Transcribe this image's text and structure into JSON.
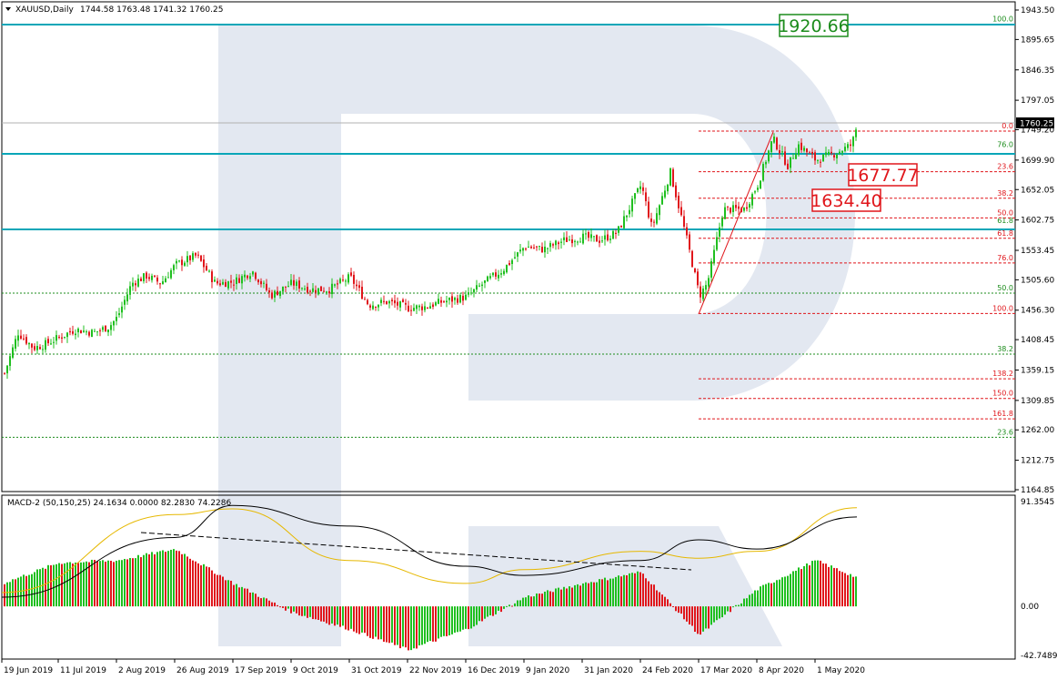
{
  "header": {
    "symbol": "XAUUSD,Daily",
    "ohlc": "1744.58 1763.48 1741.32 1760.25"
  },
  "macd_header": "MACD-2 (50,150,25) 24.1634 0.0000 82.2830 74.2286",
  "price_axis": {
    "labels": [
      "1943.50",
      "1895.65",
      "1846.35",
      "1797.05",
      "1749.20",
      "1699.90",
      "1652.05",
      "1602.75",
      "1553.45",
      "1505.60",
      "1456.30",
      "1408.45",
      "1359.15",
      "1309.85",
      "1262.00",
      "1212.75",
      "1164.85"
    ],
    "current_price": "1760.25"
  },
  "macd_axis": {
    "top": "91.3545",
    "zero": "0.00",
    "bottom": "-42.7489"
  },
  "date_axis": [
    "19 Jun 2019",
    "11 Jul 2019",
    "2 Aug 2019",
    "26 Aug 2019",
    "17 Sep 2019",
    "9 Oct 2019",
    "31 Oct 2019",
    "22 Nov 2019",
    "16 Dec 2019",
    "9 Jan 2020",
    "31 Jan 2020",
    "24 Feb 2020",
    "17 Mar 2020",
    "8 Apr 2020",
    "1 May 2020"
  ],
  "annotations": {
    "target_high": "1920.66",
    "support_1": "1677.77",
    "support_2": "1634.40"
  },
  "fib_long": [
    {
      "label": "100.0",
      "price": 1920.66
    },
    {
      "label": "76.0",
      "price": 1717
    },
    {
      "label": "61.8",
      "price": 1593
    },
    {
      "label": "50.0",
      "price": 1484
    },
    {
      "label": "38.2",
      "price": 1385
    },
    {
      "label": "23.6",
      "price": 1250
    }
  ],
  "fib_short": [
    {
      "label": "0.0",
      "price": 1747
    },
    {
      "label": "23.6",
      "price": 1681
    },
    {
      "label": "38.2",
      "price": 1638
    },
    {
      "label": "50.0",
      "price": 1606
    },
    {
      "label": "61.8",
      "price": 1573
    },
    {
      "label": "76.0",
      "price": 1533
    },
    {
      "label": "100.0",
      "price": 1451
    }
  ],
  "fib_ext": [
    {
      "label": "138.2",
      "price": 1345
    },
    {
      "label": "150.0",
      "price": 1313
    },
    {
      "label": "161.8",
      "price": 1280
    }
  ],
  "colors": {
    "bull": "#1fbf1f",
    "bear": "#e0161b",
    "fib_long": "#1c8c1c",
    "fib_short": "#e0161b",
    "level_line": "#0aa6b8",
    "signal": "#e6b800",
    "watermark": "#e3e8f1"
  },
  "chart_data": {
    "type": "candlestick",
    "title": "XAUUSD,Daily",
    "ylim": [
      1164.85,
      1943.5
    ],
    "close_path": [
      [
        "19 Jun 2019",
        1345
      ],
      [
        "25 Jun 2019",
        1420
      ],
      [
        "1 Jul 2019",
        1395
      ],
      [
        "5 Jul 2019",
        1400
      ],
      [
        "11 Jul 2019",
        1412
      ],
      [
        "17 Jul 2019",
        1425
      ],
      [
        "24 Jul 2019",
        1420
      ],
      [
        "30 Jul 2019",
        1430
      ],
      [
        "2 Aug 2019",
        1445
      ],
      [
        "8 Aug 2019",
        1500
      ],
      [
        "14 Aug 2019",
        1512
      ],
      [
        "20 Aug 2019",
        1500
      ],
      [
        "26 Aug 2019",
        1530
      ],
      [
        "3 Sep 2019",
        1545
      ],
      [
        "10 Sep 2019",
        1500
      ],
      [
        "17 Sep 2019",
        1502
      ],
      [
        "24 Sep 2019",
        1520
      ],
      [
        "1 Oct 2019",
        1480
      ],
      [
        "9 Oct 2019",
        1500
      ],
      [
        "16 Oct 2019",
        1490
      ],
      [
        "23 Oct 2019",
        1490
      ],
      [
        "31 Oct 2019",
        1510
      ],
      [
        "7 Nov 2019",
        1465
      ],
      [
        "14 Nov 2019",
        1470
      ],
      [
        "22 Nov 2019",
        1460
      ],
      [
        "29 Nov 2019",
        1462
      ],
      [
        "6 Dec 2019",
        1470
      ],
      [
        "16 Dec 2019",
        1478
      ],
      [
        "23 Dec 2019",
        1500
      ],
      [
        "31 Dec 2019",
        1522
      ],
      [
        "9 Jan 2020",
        1560
      ],
      [
        "16 Jan 2020",
        1555
      ],
      [
        "24 Jan 2020",
        1570
      ],
      [
        "31 Jan 2020",
        1575
      ],
      [
        "7 Feb 2020",
        1570
      ],
      [
        "14 Feb 2020",
        1582
      ],
      [
        "24 Feb 2020",
        1660
      ],
      [
        "28 Feb 2020",
        1590
      ],
      [
        "6 Mar 2020",
        1680
      ],
      [
        "12 Mar 2020",
        1575
      ],
      [
        "17 Mar 2020",
        1480
      ],
      [
        "20 Mar 2020",
        1500
      ],
      [
        "26 Mar 2020",
        1620
      ],
      [
        "3 Apr 2020",
        1620
      ],
      [
        "8 Apr 2020",
        1660
      ],
      [
        "14 Apr 2020",
        1735
      ],
      [
        "20 Apr 2020",
        1690
      ],
      [
        "24 Apr 2020",
        1725
      ],
      [
        "1 May 2020",
        1700
      ],
      [
        "7 May 2020",
        1710
      ],
      [
        "13 May 2020",
        1725
      ],
      [
        "15 May 2020",
        1760.25
      ]
    ],
    "macd_hist_path": [
      [
        "19 Jun 2019",
        20
      ],
      [
        "11 Jul 2019",
        38
      ],
      [
        "2 Aug 2019",
        40
      ],
      [
        "26 Aug 2019",
        50
      ],
      [
        "17 Sep 2019",
        20
      ],
      [
        "9 Oct 2019",
        -5
      ],
      [
        "31 Oct 2019",
        -20
      ],
      [
        "22 Nov 2019",
        -38
      ],
      [
        "16 Dec 2019",
        -20
      ],
      [
        "9 Jan 2020",
        8
      ],
      [
        "31 Jan 2020",
        20
      ],
      [
        "24 Feb 2020",
        30
      ],
      [
        "17 Mar 2020",
        -25
      ],
      [
        "8 Apr 2020",
        15
      ],
      [
        "1 May 2020",
        40
      ],
      [
        "15 May 2020",
        25
      ]
    ],
    "macd_signal_path": [
      [
        "19 Jun 2019",
        12
      ],
      [
        "26 Aug 2019",
        80
      ],
      [
        "17 Sep 2019",
        85
      ],
      [
        "31 Oct 2019",
        40
      ],
      [
        "16 Dec 2019",
        20
      ],
      [
        "9 Jan 2020",
        32
      ],
      [
        "24 Feb 2020",
        48
      ],
      [
        "17 Mar 2020",
        42
      ],
      [
        "8 Apr 2020",
        48
      ],
      [
        "15 May 2020",
        86
      ]
    ],
    "macd_line_path": [
      [
        "19 Jun 2019",
        8
      ],
      [
        "26 Aug 2019",
        60
      ],
      [
        "17 Sep 2019",
        88
      ],
      [
        "31 Oct 2019",
        70
      ],
      [
        "16 Dec 2019",
        35
      ],
      [
        "9 Jan 2020",
        27
      ],
      [
        "24 Feb 2020",
        40
      ],
      [
        "17 Mar 2020",
        58
      ],
      [
        "8 Apr 2020",
        50
      ],
      [
        "15 May 2020",
        78
      ]
    ]
  }
}
